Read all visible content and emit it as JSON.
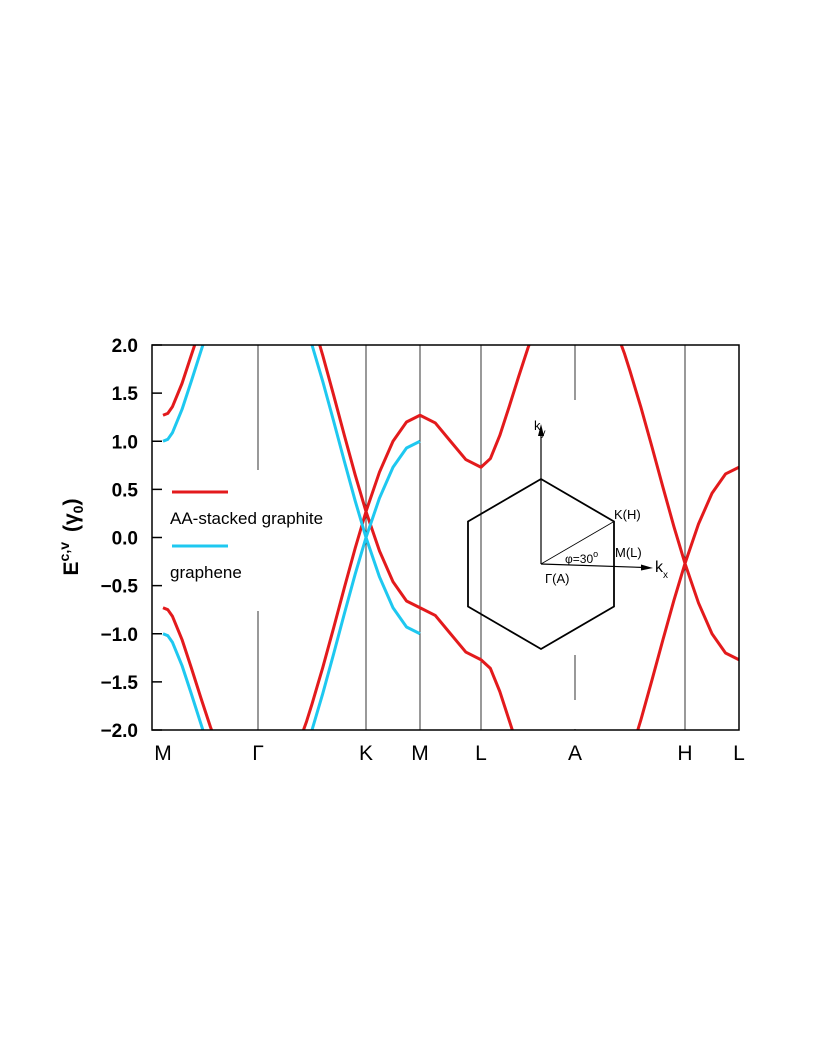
{
  "chart_data": {
    "type": "line",
    "y_label": {
      "text": "E",
      "sup": "c,v",
      "paren": "(γ",
      "sub": "0",
      "close": ")"
    },
    "xlim": [
      -0.11,
      5.76
    ],
    "xticks": [
      {
        "value": 0,
        "label": "M"
      },
      {
        "value": 0.95,
        "label": "Γ"
      },
      {
        "value": 2.03,
        "label": "K"
      },
      {
        "value": 2.57,
        "label": "M"
      },
      {
        "value": 3.18,
        "label": "L"
      },
      {
        "value": 4.12,
        "label": "A"
      },
      {
        "value": 5.22,
        "label": "H"
      },
      {
        "value": 5.76,
        "label": "L"
      }
    ],
    "ylim": [
      -2,
      2
    ],
    "yticks": [
      {
        "value": 2,
        "label": "2.0"
      },
      {
        "value": 1.5,
        "label": "1.5"
      },
      {
        "value": 1,
        "label": "1.0"
      },
      {
        "value": 0.5,
        "label": "0.5"
      },
      {
        "value": 0,
        "label": "0.0"
      },
      {
        "value": -0.5,
        "label": "−0.5"
      },
      {
        "value": -1,
        "label": "−1.0"
      },
      {
        "value": -1.5,
        "label": "−1.5"
      },
      {
        "value": -2,
        "label": "−2.0"
      }
    ],
    "legend": "left",
    "series": [
      {
        "name": "AA-stacked graphite",
        "color": "#e31a1c",
        "x": [
          0,
          0.048,
          0.095,
          0.19,
          0.285,
          0.317,
          null,
          0,
          0.048,
          0.095,
          0.19,
          0.285,
          0.38,
          0.475,
          0.486,
          null,
          1.567,
          1.598,
          1.706,
          1.814,
          1.922,
          2.03,
          2.165,
          2.3,
          2.435,
          2.57,
          2.723,
          2.875,
          3.028,
          3.18,
          3.274,
          3.368,
          3.462,
          3.556,
          3.65,
          3.661,
          null,
          1.405,
          1.436,
          1.49,
          1.544,
          1.598,
          1.706,
          1.814,
          1.922,
          2.03,
          2.165,
          2.3,
          2.435,
          2.57,
          2.723,
          2.875,
          3.028,
          3.18,
          3.274,
          3.368,
          3.462,
          3.493,
          null,
          4.583,
          4.615,
          4.67,
          4.725,
          4.78,
          4.89,
          5.0,
          5.11,
          5.22,
          5.355,
          5.49,
          5.625,
          5.76,
          null,
          4.748,
          4.78,
          4.89,
          5.0,
          5.11,
          5.22,
          5.355,
          5.49,
          5.625,
          5.76
        ],
        "values": [
          1.27,
          1.29,
          1.36,
          1.6,
          1.9,
          2.0,
          null,
          -0.73,
          -0.75,
          -0.82,
          -1.06,
          -1.36,
          -1.67,
          -1.97,
          -2.0,
          null,
          2.0,
          1.89,
          1.48,
          1.06,
          0.65,
          0.27,
          0.68,
          1.0,
          1.2,
          1.27,
          1.19,
          1.0,
          0.81,
          0.73,
          0.82,
          1.06,
          1.36,
          1.67,
          1.97,
          2.0,
          null,
          -2.0,
          -1.91,
          -1.73,
          -1.54,
          -1.35,
          -0.94,
          -0.52,
          -0.11,
          0.27,
          -0.14,
          -0.46,
          -0.66,
          -0.73,
          -0.81,
          -1.0,
          -1.19,
          -1.27,
          -1.36,
          -1.6,
          -1.9,
          -2.0,
          null,
          2.0,
          1.91,
          1.73,
          1.54,
          1.35,
          0.94,
          0.52,
          0.11,
          -0.27,
          0.14,
          0.46,
          0.66,
          0.73,
          null,
          -2.0,
          -1.89,
          -1.48,
          -1.06,
          -0.65,
          -0.27,
          -0.68,
          -1.0,
          -1.2,
          -1.27
        ]
      },
      {
        "name": "graphene",
        "color": "#1ec8f0",
        "x": [
          0,
          0.048,
          0.095,
          0.19,
          0.285,
          0.38,
          0.399,
          null,
          0,
          0.048,
          0.095,
          0.19,
          0.285,
          0.38,
          0.399,
          null,
          1.49,
          1.544,
          1.598,
          1.706,
          1.814,
          1.922,
          2.03,
          2.165,
          2.3,
          2.435,
          2.57,
          null,
          1.49,
          1.544,
          1.598,
          1.706,
          1.814,
          1.922,
          2.03,
          2.165,
          2.3,
          2.435,
          2.57
        ],
        "values": [
          1,
          1.02,
          1.09,
          1.33,
          1.63,
          1.94,
          2.0,
          null,
          -1,
          -1.02,
          -1.09,
          -1.33,
          -1.63,
          -1.94,
          -2.0,
          null,
          2.0,
          1.81,
          1.62,
          1.21,
          0.79,
          0.38,
          0,
          0.41,
          0.73,
          0.93,
          1.0,
          null,
          -2.0,
          -1.81,
          -1.62,
          -1.21,
          -0.79,
          -0.38,
          0,
          -0.41,
          -0.73,
          -0.93,
          -1.0
        ]
      }
    ],
    "inset": {
      "ky": {
        "text": "k",
        "sub": "y"
      },
      "kx": {
        "text": "k",
        "sub": "x"
      },
      "K": "K(H)",
      "M": "M(L)",
      "gamma": "Γ(A)",
      "phi": {
        "text": "φ=30",
        "sup": "o"
      }
    }
  }
}
